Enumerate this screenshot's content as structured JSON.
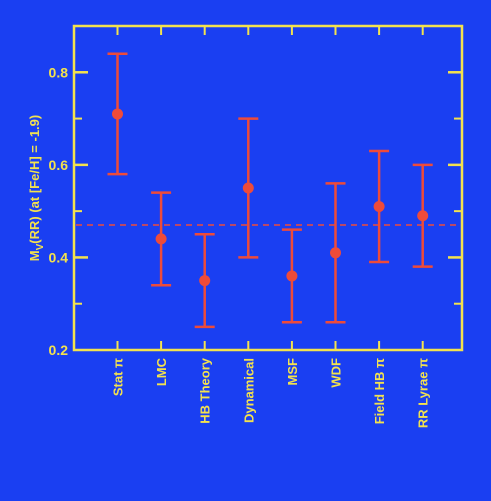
{
  "chart_data": {
    "type": "scatter",
    "title": "",
    "xlabel": "",
    "ylabel": "M_V(RR)  (at [Fe/H] = -1.9)",
    "ylabel_parts": {
      "main": "M",
      "sub": "V",
      "rest": "(RR)  (at [Fe/H] = -1.9)"
    },
    "ylim": [
      0.2,
      0.9
    ],
    "yticks": [
      0.2,
      0.4,
      0.6,
      0.8
    ],
    "ytick_labels": [
      "0.2",
      "0.4",
      "0.6",
      "0.8"
    ],
    "y_minor_step": 0.1,
    "grid": false,
    "categories": [
      "Stat π",
      "LMC",
      "HB Theory",
      "Dynamical",
      "MSF",
      "WDF",
      "Field HB π",
      "RR Lyrae π"
    ],
    "series": [
      {
        "values": [
          0.71,
          0.44,
          0.35,
          0.55,
          0.36,
          0.41,
          0.51,
          0.49
        ],
        "lower": [
          0.58,
          0.34,
          0.25,
          0.4,
          0.26,
          0.26,
          0.39,
          0.38
        ],
        "upper": [
          0.84,
          0.54,
          0.45,
          0.7,
          0.46,
          0.56,
          0.63,
          0.6
        ],
        "color": "#ee4b3a"
      }
    ],
    "reference_line": {
      "y": 0.47,
      "style": "dashed",
      "color": "#ee4b3a"
    },
    "colors": {
      "background": "#1a3ff2",
      "axis": "#f3e24e",
      "data": "#ee4b3a"
    }
  }
}
